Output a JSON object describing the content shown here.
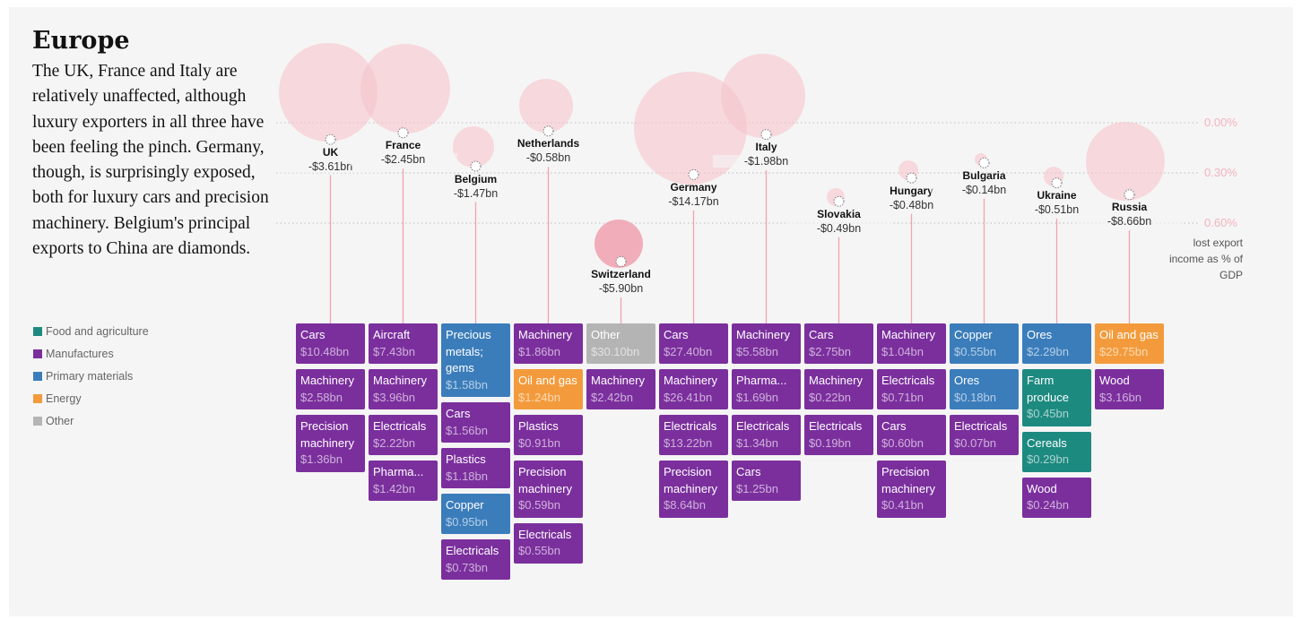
{
  "title": "Europe",
  "description": "The UK, France and Italy are relatively unaffected, although luxury exporters in all three have been feeling the pinch. Germany, though, is surprisingly exposed, both for luxury cars and precision machinery. Belgium's principal exports to China are diamonds.",
  "legend": [
    {
      "label": "Food and agriculture",
      "color": "#1d8a80"
    },
    {
      "label": "Manufactures",
      "color": "#7b2f9d"
    },
    {
      "label": "Primary materials",
      "color": "#3b7dbb"
    },
    {
      "label": "Energy",
      "color": "#f39b3c"
    },
    {
      "label": "Other",
      "color": "#b4b4b4"
    }
  ],
  "scale": {
    "label": "lost export income as % of GDP",
    "ylim": [
      0,
      0.6
    ],
    "ticks": [
      {
        "value": 0,
        "label": "0.00%"
      },
      {
        "value": 0.3,
        "label": "0.30%"
      },
      {
        "value": 0.6,
        "label": "0.60%"
      }
    ]
  },
  "countries": [
    {
      "name": "UK",
      "loss": "-$3.61bn",
      "gdp_pct": 0.1,
      "exports": [
        {
          "name": "Cars",
          "value": "$10.48bn",
          "category": 1
        },
        {
          "name": "Machinery",
          "value": "$2.58bn",
          "category": 1
        },
        {
          "name": "Precision machinery",
          "value": "$1.36bn",
          "category": 1
        }
      ]
    },
    {
      "name": "France",
      "loss": "-$2.45bn",
      "gdp_pct": 0.06,
      "exports": [
        {
          "name": "Aircraft",
          "value": "$7.43bn",
          "category": 1
        },
        {
          "name": "Machinery",
          "value": "$3.96bn",
          "category": 1
        },
        {
          "name": "Electricals",
          "value": "$2.22bn",
          "category": 1
        },
        {
          "name": "Pharma...",
          "value": "$1.42bn",
          "category": 1
        }
      ]
    },
    {
      "name": "Belgium",
      "loss": "-$1.47bn",
      "gdp_pct": 0.26,
      "exports": [
        {
          "name": "Precious metals; gems",
          "value": "$1.58bn",
          "category": 2
        },
        {
          "name": "Cars",
          "value": "$1.56bn",
          "category": 1
        },
        {
          "name": "Plastics",
          "value": "$1.18bn",
          "category": 1
        },
        {
          "name": "Copper",
          "value": "$0.95bn",
          "category": 2
        },
        {
          "name": "Electricals",
          "value": "$0.73bn",
          "category": 1
        }
      ]
    },
    {
      "name": "Netherlands",
      "loss": "-$0.58bn",
      "gdp_pct": 0.05,
      "exports": [
        {
          "name": "Machinery",
          "value": "$1.86bn",
          "category": 1
        },
        {
          "name": "Oil and gas",
          "value": "$1.24bn",
          "category": 3
        },
        {
          "name": "Plastics",
          "value": "$0.91bn",
          "category": 1
        },
        {
          "name": "Precision machinery",
          "value": "$0.59bn",
          "category": 1
        },
        {
          "name": "Electricals",
          "value": "$0.55bn",
          "category": 1
        }
      ]
    },
    {
      "name": "Switzerland",
      "loss": "-$5.90bn",
      "gdp_pct": 0.83,
      "exports": [
        {
          "name": "Other",
          "value": "$30.10bn",
          "category": 4
        },
        {
          "name": "Machinery",
          "value": "$2.42bn",
          "category": 1
        }
      ]
    },
    {
      "name": "Germany",
      "loss": "-$14.17bn",
      "gdp_pct": 0.31,
      "exports": [
        {
          "name": "Cars",
          "value": "$27.40bn",
          "category": 1
        },
        {
          "name": "Machinery",
          "value": "$26.41bn",
          "category": 1
        },
        {
          "name": "Electricals",
          "value": "$13.22bn",
          "category": 1
        },
        {
          "name": "Precision machinery",
          "value": "$8.64bn",
          "category": 1
        }
      ]
    },
    {
      "name": "Italy",
      "loss": "-$1.98bn",
      "gdp_pct": 0.07,
      "exports": [
        {
          "name": "Machinery",
          "value": "$5.58bn",
          "category": 1
        },
        {
          "name": "Pharma...",
          "value": "$1.69bn",
          "category": 1
        },
        {
          "name": "Electricals",
          "value": "$1.34bn",
          "category": 1
        },
        {
          "name": "Cars",
          "value": "$1.25bn",
          "category": 1
        }
      ]
    },
    {
      "name": "Slovakia",
      "loss": "-$0.49bn",
      "gdp_pct": 0.47,
      "exports": [
        {
          "name": "Cars",
          "value": "$2.75bn",
          "category": 1
        },
        {
          "name": "Machinery",
          "value": "$0.22bn",
          "category": 1
        },
        {
          "name": "Electricals",
          "value": "$0.19bn",
          "category": 1
        }
      ]
    },
    {
      "name": "Hungary",
      "loss": "-$0.48bn",
      "gdp_pct": 0.33,
      "exports": [
        {
          "name": "Machinery",
          "value": "$1.04bn",
          "category": 1
        },
        {
          "name": "Electricals",
          "value": "$0.71bn",
          "category": 1
        },
        {
          "name": "Cars",
          "value": "$0.60bn",
          "category": 1
        },
        {
          "name": "Precision machinery",
          "value": "$0.41bn",
          "category": 1
        }
      ]
    },
    {
      "name": "Bulgaria",
      "loss": "-$0.14bn",
      "gdp_pct": 0.24,
      "exports": [
        {
          "name": "Copper",
          "value": "$0.55bn",
          "category": 2
        },
        {
          "name": "Ores",
          "value": "$0.18bn",
          "category": 2
        },
        {
          "name": "Electricals",
          "value": "$0.07bn",
          "category": 1
        }
      ]
    },
    {
      "name": "Ukraine",
      "loss": "-$0.51bn",
      "gdp_pct": 0.36,
      "exports": [
        {
          "name": "Ores",
          "value": "$2.29bn",
          "category": 2
        },
        {
          "name": "Farm produce",
          "value": "$0.45bn",
          "category": 0
        },
        {
          "name": "Cereals",
          "value": "$0.29bn",
          "category": 0
        },
        {
          "name": "Wood",
          "value": "$0.24bn",
          "category": 1
        }
      ]
    },
    {
      "name": "Russia",
      "loss": "-$8.66bn",
      "gdp_pct": 0.43,
      "exports": [
        {
          "name": "Oil and gas",
          "value": "$29.75bn",
          "category": 3
        },
        {
          "name": "Wood",
          "value": "$3.16bn",
          "category": 1
        }
      ]
    }
  ]
}
